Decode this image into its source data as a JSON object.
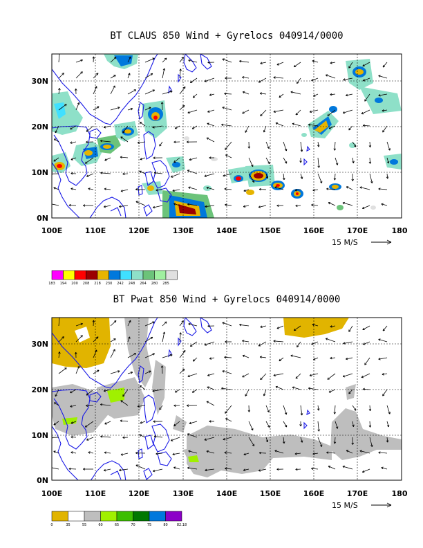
{
  "panels": [
    {
      "id": "claus",
      "title": "BT CLAUS 850 Wind + Gyrelocs 040914/0000",
      "x_ticks": [
        "100E",
        "110E",
        "120E",
        "130E",
        "140E",
        "150E",
        "160E",
        "170E",
        "180"
      ],
      "y_ticks": [
        "0N",
        "10N",
        "20N",
        "30N"
      ],
      "lon_range": [
        100,
        180
      ],
      "lat_range": [
        0,
        36
      ],
      "vector_scale_label": "15 M/S",
      "colorbar": {
        "labels": [
          "183",
          "194",
          "200",
          "208",
          "218",
          "230",
          "242",
          "248",
          "264",
          "280",
          "285"
        ],
        "colors": [
          "#ff00ff",
          "#ffff00",
          "#ff0000",
          "#9b0000",
          "#e6b400",
          "#0078dc",
          "#40e0ff",
          "#8ee0c8",
          "#6cc37a",
          "#a0f0a0",
          "#e0e0e0"
        ]
      }
    },
    {
      "id": "pwat",
      "title": "BT Pwat 850 Wind + Gyrelocs 040914/0000",
      "x_ticks": [
        "100E",
        "110E",
        "120E",
        "130E",
        "140E",
        "150E",
        "160E",
        "170E",
        "180"
      ],
      "y_ticks": [
        "0N",
        "10N",
        "20N",
        "30N"
      ],
      "lon_range": [
        100,
        180
      ],
      "lat_range": [
        0,
        36
      ],
      "vector_scale_label": "15 M/S",
      "colorbar": {
        "labels": [
          "0",
          "35",
          "55",
          "60",
          "65",
          "70",
          "75",
          "80",
          "82.18"
        ],
        "colors": [
          "#e1b400",
          "#ffffff",
          "#bebebe",
          "#a0f000",
          "#3cbe00",
          "#007800",
          "#0078dc",
          "#8c00c8"
        ]
      }
    }
  ]
}
